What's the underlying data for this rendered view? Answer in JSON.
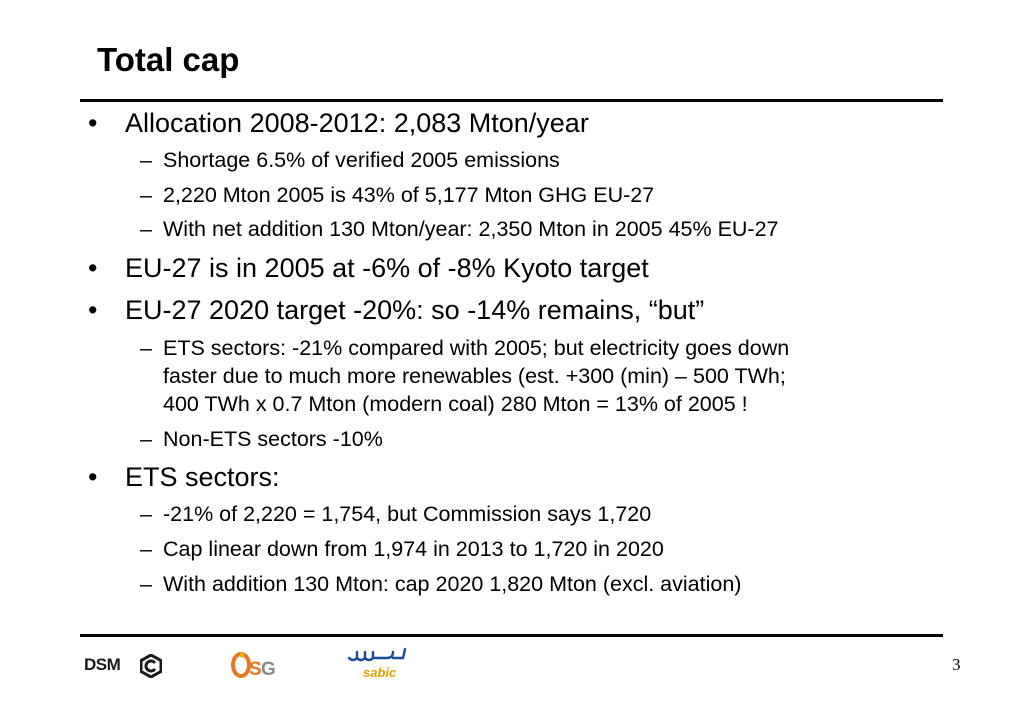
{
  "slide": {
    "title": "Total cap",
    "page_number": "3",
    "bullets": [
      {
        "text": "Allocation 2008-2012: 2,083 Mton/year",
        "subs": [
          "Shortage 6.5% of verified 2005 emissions",
          "2,220 Mton 2005 is 43% of 5,177 Mton GHG EU-27",
          "With net addition 130 Mton/year: 2,350 Mton in 2005 45% EU-27"
        ]
      },
      {
        "text": "EU-27 is in 2005 at -6% of -8% Kyoto target",
        "subs": []
      },
      {
        "text": "EU-27 2020 target -20%: so -14% remains, “but”",
        "subs": [
          "ETS sectors: -21% compared with 2005; but electricity goes down\nfaster due to much more renewables (est. +300 (min) – 500 TWh;\n400 TWh x 0.7 Mton (modern coal) 280 Mton = 13% of 2005 !",
          "Non-ETS sectors -10%"
        ]
      },
      {
        "text": "ETS sectors:",
        "subs": [
          "-21% of 2,220 = 1,754, but Commission says 1,720",
          "Cap linear down from 1,974 in 2013 to 1,720 in 2020",
          "With addition 130 Mton: cap 2020 1,820 Mton (excl. aviation)"
        ]
      }
    ],
    "bullet_marker": "•",
    "sub_marker": "–"
  },
  "footer": {
    "logos": [
      {
        "name": "DSM",
        "text": "DSM"
      },
      {
        "name": "OSG",
        "text": "OSG"
      },
      {
        "name": "SABIC",
        "text": "sabic",
        "arabic": "سابك"
      }
    ],
    "colors": {
      "osg_orange": "#e87722",
      "osg_grey": "#8a8a8a",
      "sabic_blue": "#1a4b9b",
      "sabic_gold": "#e0a000"
    }
  }
}
